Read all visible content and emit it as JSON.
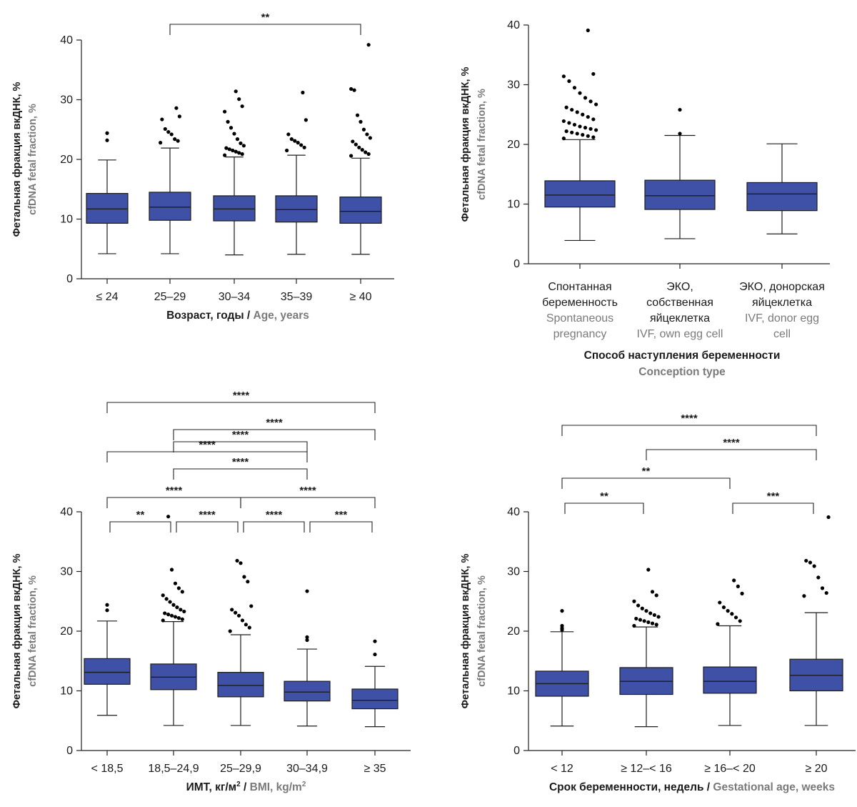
{
  "styles": {
    "box_fill": "#3f51a6",
    "box_stroke": "#1c1c1c",
    "text_dark": "#1a1a1a",
    "text_grey": "#7a7a7a",
    "outlier_color": "#000000"
  },
  "chart_data": [
    {
      "id": "age",
      "type": "box",
      "ylabel_ru": "Фетальная фракция вкДНК, %",
      "ylabel_en": "cfDNA fetal fraction, %",
      "xlabel_ru": "Возраст, годы",
      "xlabel_sep": " / ",
      "xlabel_en": "Age, years",
      "ylim": [
        0,
        40
      ],
      "yticks": [
        "0",
        "10",
        "20",
        "30",
        "40"
      ],
      "categories": [
        "≤ 24",
        "25–29",
        "30–34",
        "35–39",
        "≥ 40"
      ],
      "boxes": [
        {
          "q1": 9.3,
          "median": 11.7,
          "q3": 14.3,
          "whisker_low": 4.2,
          "whisker_high": 19.9,
          "outliers": [
            23.2,
            24.4
          ]
        },
        {
          "q1": 9.8,
          "median": 12.0,
          "q3": 14.5,
          "whisker_low": 4.2,
          "whisker_high": 21.9,
          "outliers": [
            22.8,
            23.1,
            23.4,
            24.2,
            24.6,
            25.1,
            26.7,
            27.2,
            28.6
          ]
        },
        {
          "q1": 9.7,
          "median": 11.7,
          "q3": 13.9,
          "whisker_low": 4.0,
          "whisker_high": 20.4,
          "outliers": [
            20.7,
            20.9,
            21.1,
            21.3,
            21.5,
            21.7,
            21.9,
            22.3,
            22.7,
            23.4,
            24.3,
            25.3,
            26.3,
            28.0,
            28.9,
            30.1,
            31.4
          ]
        },
        {
          "q1": 9.5,
          "median": 11.6,
          "q3": 13.9,
          "whisker_low": 4.1,
          "whisker_high": 20.7,
          "outliers": [
            21.5,
            22.0,
            22.4,
            22.8,
            23.1,
            23.4,
            24.2,
            26.6,
            31.2
          ]
        },
        {
          "q1": 9.3,
          "median": 11.3,
          "q3": 13.7,
          "whisker_low": 4.1,
          "whisker_high": 20.2,
          "outliers": [
            20.6,
            20.9,
            21.2,
            21.6,
            22.0,
            22.5,
            23.0,
            23.6,
            24.2,
            25.0,
            26.3,
            27.4,
            31.6,
            31.8,
            39.2
          ]
        }
      ],
      "brackets": [
        {
          "from": 1,
          "to": 4,
          "label": "**"
        }
      ]
    },
    {
      "id": "conception",
      "type": "box",
      "ylabel_ru": "Фетальная фракция вкДНК, %",
      "ylabel_en": "cfDNA fetal fraction, %",
      "xlabel_ru": "Способ наступления беременности",
      "xlabel_en": "Conception type",
      "ylim": [
        0,
        40
      ],
      "yticks": [
        "0",
        "10",
        "20",
        "30",
        "40"
      ],
      "categories_ru": [
        [
          "Спонтанная",
          "беременность"
        ],
        [
          "ЭКО,",
          "собственная",
          "яйцеклетка"
        ],
        [
          "ЭКО, донорская",
          "яйцеклетка"
        ]
      ],
      "categories_en": [
        [
          "Spontaneous",
          "pregnancy"
        ],
        [
          "IVF, own egg cell"
        ],
        [
          "IVF, donor egg",
          "cell"
        ]
      ],
      "boxes": [
        {
          "q1": 9.5,
          "median": 11.5,
          "q3": 13.9,
          "whisker_low": 3.9,
          "whisker_high": 20.8,
          "outliers": [
            21.0,
            21.2,
            21.4,
            21.6,
            21.8,
            22.0,
            22.2,
            22.4,
            22.6,
            22.8,
            23.0,
            23.3,
            23.6,
            23.9,
            24.2,
            24.6,
            25.0,
            25.4,
            25.8,
            26.2,
            26.7,
            27.2,
            27.8,
            28.6,
            29.5,
            30.6,
            31.4,
            31.8,
            39.1
          ]
        },
        {
          "q1": 9.1,
          "median": 11.4,
          "q3": 14.0,
          "whisker_low": 4.2,
          "whisker_high": 21.5,
          "outliers": [
            21.8,
            25.8
          ]
        },
        {
          "q1": 8.9,
          "median": 11.7,
          "q3": 13.6,
          "whisker_low": 5.0,
          "whisker_high": 20.1,
          "outliers": []
        }
      ],
      "brackets": []
    },
    {
      "id": "bmi",
      "type": "box",
      "ylabel_ru": "Фетальная фракция вкДНК, %",
      "ylabel_en": "cfDNA fetal fraction, %",
      "xlabel_ru": "ИМТ, кг/м",
      "xlabel_sup": "2",
      "xlabel_sep": " / ",
      "xlabel_en": "BMI, kg/m",
      "ylim": [
        0,
        40
      ],
      "yticks": [
        "0",
        "10",
        "20",
        "30",
        "40"
      ],
      "categories": [
        "< 18,5",
        "18,5–24,9",
        "25–29,9",
        "30–34,9",
        "≥ 35"
      ],
      "boxes": [
        {
          "q1": 11.1,
          "median": 13.1,
          "q3": 15.4,
          "whisker_low": 5.9,
          "whisker_high": 21.7,
          "outliers": [
            23.5,
            24.4
          ]
        },
        {
          "q1": 10.2,
          "median": 12.3,
          "q3": 14.5,
          "whisker_low": 4.2,
          "whisker_high": 21.6,
          "outliers": [
            21.8,
            22.0,
            22.2,
            22.4,
            22.6,
            22.8,
            23.0,
            23.3,
            23.6,
            24.0,
            24.4,
            24.9,
            25.4,
            26.0,
            26.6,
            27.2,
            28.0,
            30.3,
            39.2
          ]
        },
        {
          "q1": 9.0,
          "median": 10.9,
          "q3": 13.1,
          "whisker_low": 4.2,
          "whisker_high": 19.4,
          "outliers": [
            20.0,
            20.6,
            21.1,
            21.8,
            22.6,
            23.1,
            23.6,
            24.2,
            28.3,
            29.1,
            31.4,
            31.8
          ]
        },
        {
          "q1": 8.3,
          "median": 9.8,
          "q3": 11.6,
          "whisker_low": 4.1,
          "whisker_high": 17.0,
          "outliers": [
            18.5,
            19.0,
            26.7
          ]
        },
        {
          "q1": 7.0,
          "median": 8.4,
          "q3": 10.3,
          "whisker_low": 4.0,
          "whisker_high": 14.1,
          "outliers": [
            16.1,
            18.3
          ]
        }
      ],
      "brackets": [
        {
          "from": 0,
          "to": 4,
          "label": "****"
        },
        {
          "from": 1,
          "to": 4,
          "label": "****"
        },
        {
          "from": 1,
          "to": 3,
          "label": "****"
        },
        {
          "from": 0,
          "to": 3,
          "label": "****"
        },
        {
          "from": 1,
          "to": 3,
          "label": "****"
        },
        {
          "from": 0,
          "to": 2,
          "label": "****"
        },
        {
          "from": 2,
          "to": 4,
          "label": "****"
        },
        {
          "from": 0,
          "to": 1,
          "label": "**"
        },
        {
          "from": 1,
          "to": 2,
          "label": "****"
        },
        {
          "from": 2,
          "to": 3,
          "label": "****"
        },
        {
          "from": 3,
          "to": 4,
          "label": "***"
        }
      ]
    },
    {
      "id": "gestational",
      "type": "box",
      "ylabel_ru": "Фетальная фракция вкДНК, %",
      "ylabel_en": "cfDNA fetal fraction, %",
      "xlabel_ru": "Срок беременности, недель",
      "xlabel_sep": " / ",
      "xlabel_en": "Gestational age, weeks",
      "ylim": [
        0,
        40
      ],
      "yticks": [
        "0",
        "10",
        "20",
        "30",
        "40"
      ],
      "categories": [
        "< 12",
        "≥ 12–< 16",
        "≥ 16–< 20",
        "≥ 20"
      ],
      "boxes": [
        {
          "q1": 9.1,
          "median": 11.2,
          "q3": 13.3,
          "whisker_low": 4.1,
          "whisker_high": 19.9,
          "outliers": [
            20.2,
            20.5,
            20.9,
            23.4
          ]
        },
        {
          "q1": 9.4,
          "median": 11.6,
          "q3": 13.9,
          "whisker_low": 4.0,
          "whisker_high": 20.7,
          "outliers": [
            20.9,
            21.1,
            21.3,
            21.5,
            21.7,
            21.9,
            22.1,
            22.4,
            22.7,
            23.0,
            23.4,
            23.8,
            24.3,
            25.0,
            26.0,
            26.6,
            30.3
          ]
        },
        {
          "q1": 9.6,
          "median": 11.6,
          "q3": 14.0,
          "whisker_low": 4.2,
          "whisker_high": 20.9,
          "outliers": [
            21.2,
            21.7,
            22.3,
            22.9,
            23.4,
            24.0,
            24.8,
            26.3,
            27.5,
            28.5
          ]
        },
        {
          "q1": 10.0,
          "median": 12.6,
          "q3": 15.3,
          "whisker_low": 4.2,
          "whisker_high": 23.1,
          "outliers": [
            25.9,
            26.4,
            27.2,
            29.0,
            30.9,
            31.5,
            31.8,
            39.1
          ]
        }
      ],
      "brackets": [
        {
          "from": 0,
          "to": 3,
          "label": "****"
        },
        {
          "from": 1,
          "to": 3,
          "label": "****"
        },
        {
          "from": 0,
          "to": 2,
          "label": "**"
        },
        {
          "from": 0,
          "to": 1,
          "label": "**"
        },
        {
          "from": 2,
          "to": 3,
          "label": "***"
        }
      ]
    }
  ]
}
